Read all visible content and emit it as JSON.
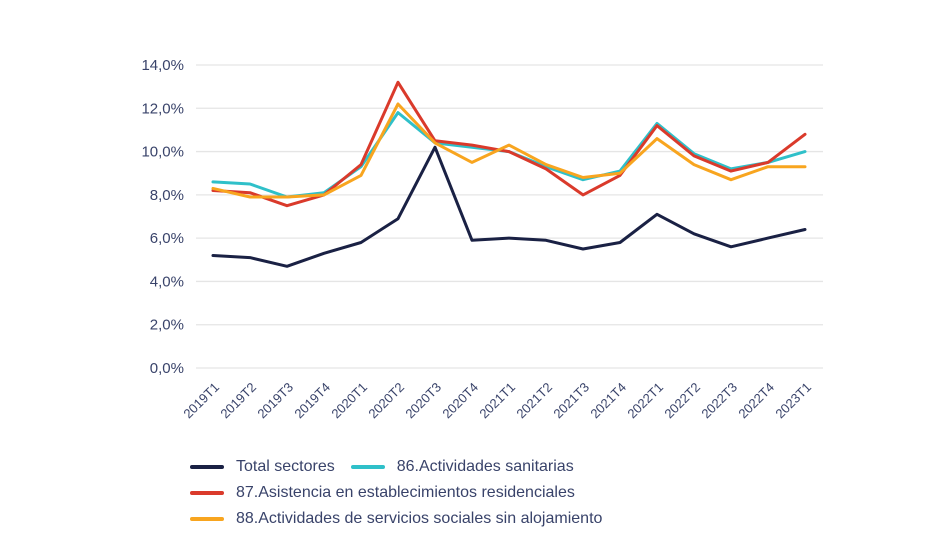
{
  "chart_data": {
    "type": "line",
    "title": "",
    "xlabel": "",
    "ylabel": "",
    "unit": "%",
    "ylim": [
      0,
      14
    ],
    "ytick_step": 2,
    "ytick_labels": [
      "0,0%",
      "2,0%",
      "4,0%",
      "6,0%",
      "8,0%",
      "10,0%",
      "12,0%",
      "14,0%"
    ],
    "grid": "horizontal",
    "legend_position": "bottom-left",
    "gridline_color": "#e5e5e5",
    "text_color": "#39436a",
    "categories": [
      "2019T1",
      "2019T2",
      "2019T3",
      "2019T4",
      "2020T1",
      "2020T2",
      "2020T3",
      "2020T4",
      "2021T1",
      "2021T2",
      "2021T3",
      "2021T4",
      "2022T1",
      "2022T2",
      "2022T3",
      "2022T4",
      "2023T1"
    ],
    "series": [
      {
        "name": "Total sectores",
        "color": "#1a2144",
        "values": [
          5.2,
          5.1,
          4.7,
          5.3,
          5.8,
          6.9,
          10.2,
          5.9,
          6.0,
          5.9,
          5.5,
          5.8,
          7.1,
          6.2,
          5.6,
          6.0,
          6.4
        ]
      },
      {
        "name": "86.Actividades sanitarias",
        "color": "#2fc0c9",
        "values": [
          8.6,
          8.5,
          7.9,
          8.1,
          9.3,
          11.8,
          10.4,
          10.2,
          10.0,
          9.3,
          8.7,
          9.1,
          11.3,
          9.9,
          9.2,
          9.5,
          10.0
        ]
      },
      {
        "name": "87.Asistencia en establecimientos residenciales",
        "color": "#da3a2b",
        "values": [
          8.2,
          8.1,
          7.5,
          8.0,
          9.4,
          13.2,
          10.5,
          10.3,
          10.0,
          9.2,
          8.0,
          8.9,
          11.2,
          9.8,
          9.1,
          9.5,
          10.8
        ]
      },
      {
        "name": "88.Actividades de servicios sociales sin alojamiento",
        "color": "#f8a51f",
        "values": [
          8.3,
          7.9,
          7.9,
          8.0,
          8.9,
          12.2,
          10.4,
          9.5,
          10.3,
          9.4,
          8.8,
          9.0,
          10.6,
          9.4,
          8.7,
          9.3,
          9.3
        ]
      }
    ]
  }
}
